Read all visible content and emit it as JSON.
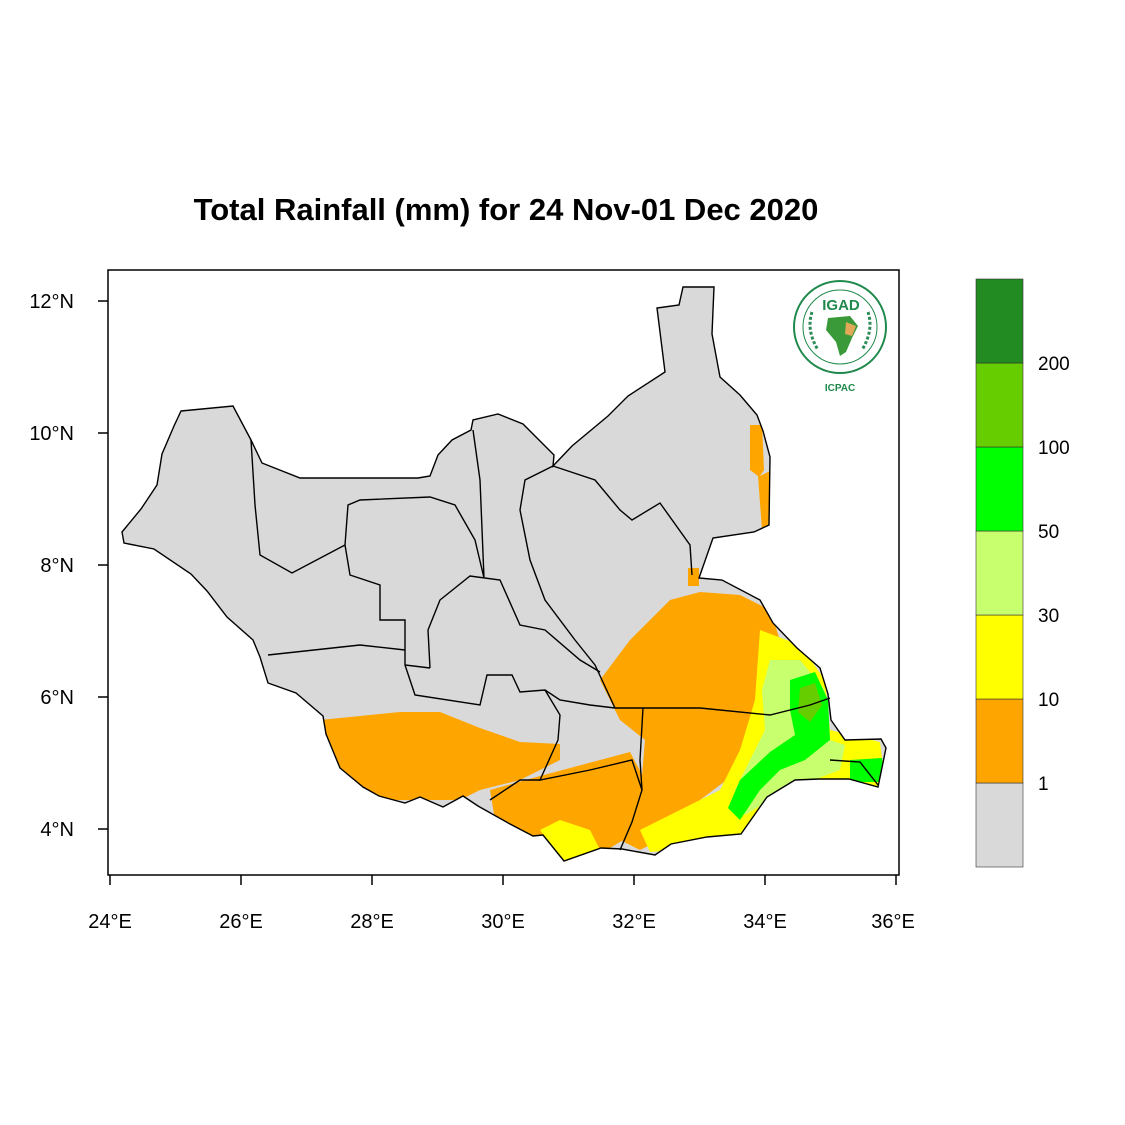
{
  "title": "Total Rainfall (mm) for 24 Nov-01 Dec 2020",
  "axes": {
    "lon_ticks": [
      "24°E",
      "26°E",
      "28°E",
      "30°E",
      "32°E",
      "34°E",
      "36°E"
    ],
    "lat_ticks": [
      "12°N",
      "10°N",
      "8°N",
      "6°N",
      "4°N"
    ]
  },
  "legend": {
    "bins": [
      {
        "color": "#d9d9d9",
        "label": ""
      },
      {
        "color": "#ffa500",
        "label": "1"
      },
      {
        "color": "#ffff00",
        "label": "10"
      },
      {
        "color": "#c8ff6e",
        "label": "30"
      },
      {
        "color": "#00ff00",
        "label": "50"
      },
      {
        "color": "#66cd00",
        "label": "100"
      },
      {
        "color": "#228b22",
        "label": "200"
      }
    ]
  },
  "logo": {
    "badge": "IGAD",
    "org": "ICPAC"
  },
  "colors": {
    "land": "#d9d9d9",
    "frame": "#000000",
    "boundary": "#000000"
  }
}
